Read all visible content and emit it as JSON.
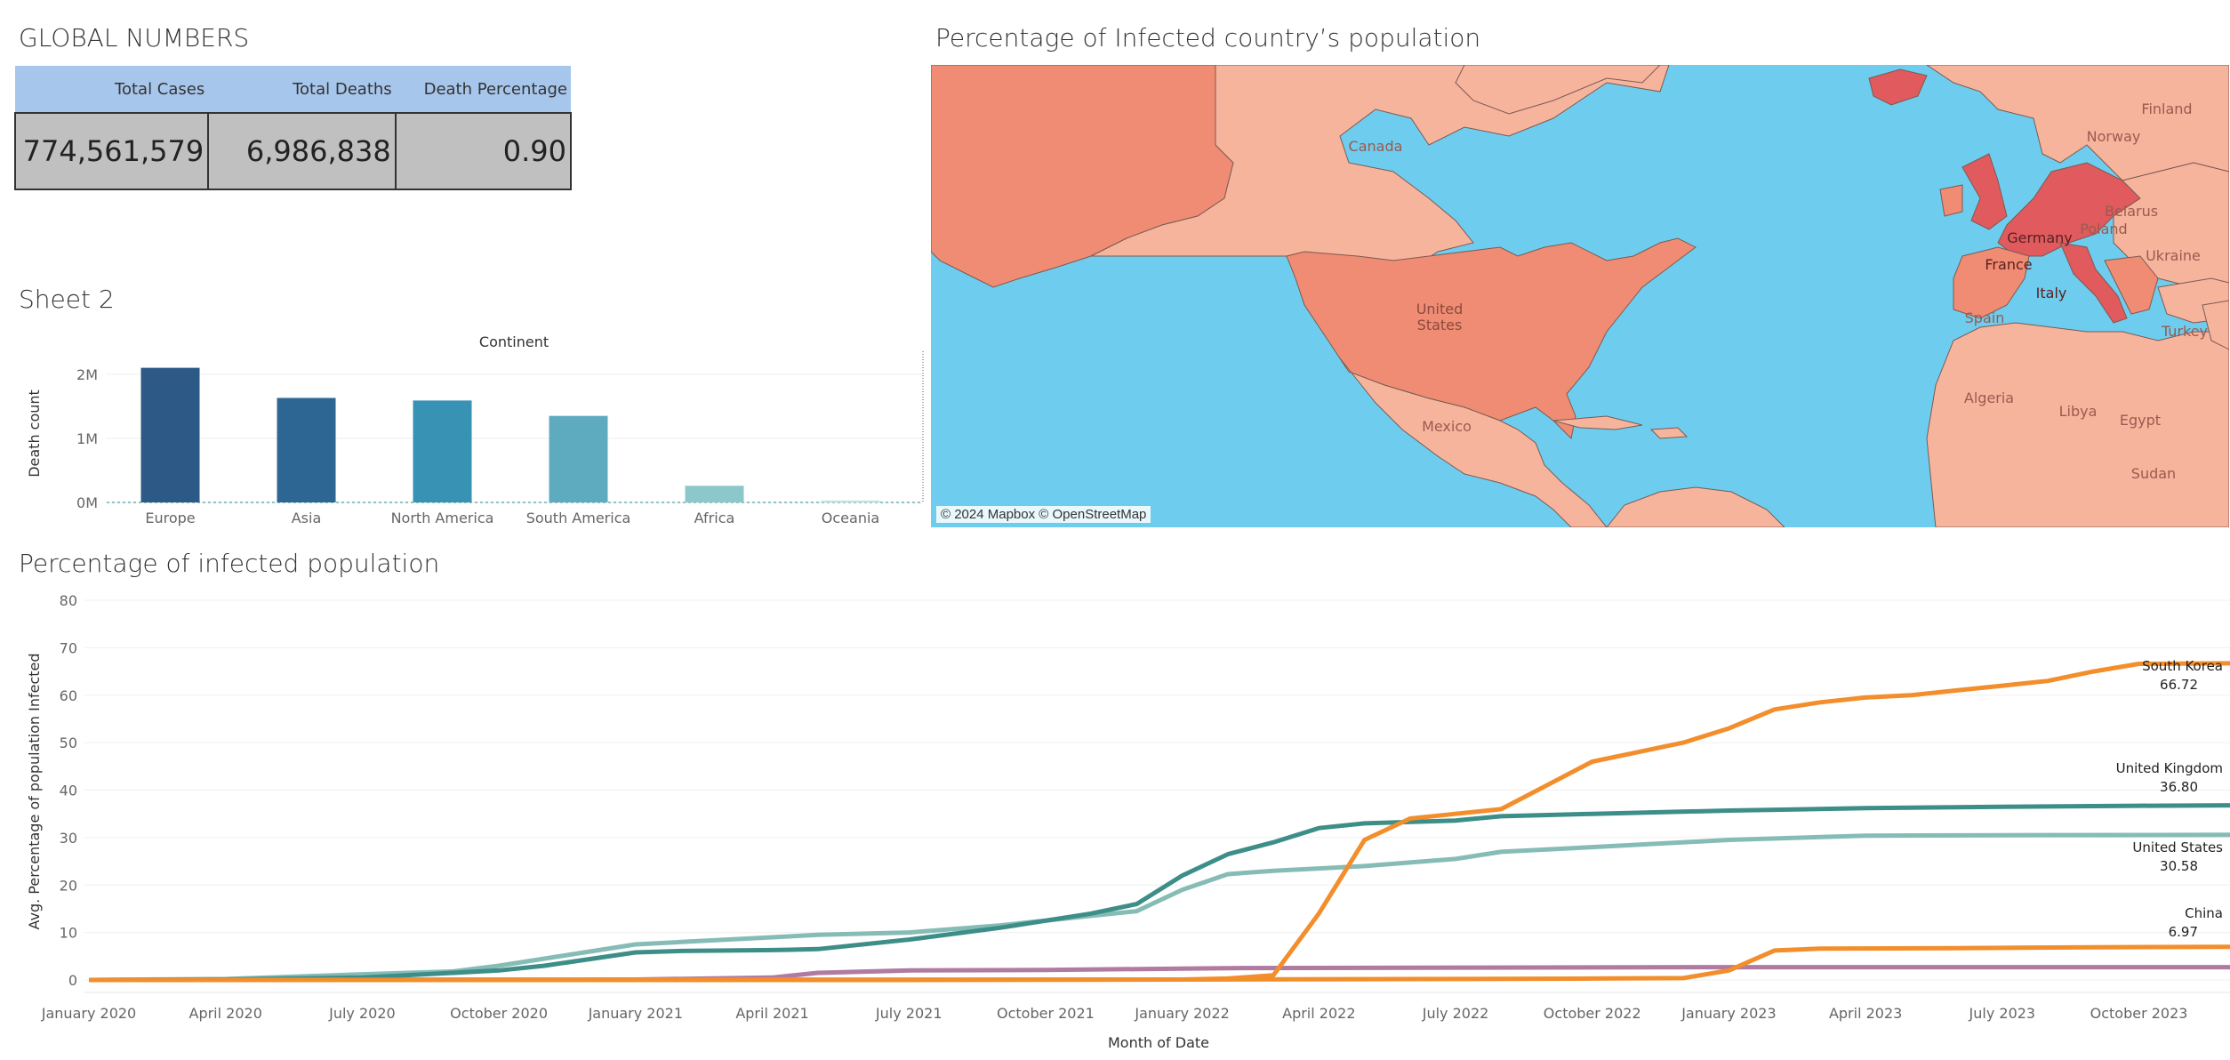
{
  "global": {
    "title": "GLOBAL NUMBERS",
    "headers": [
      "Total Cases",
      "Total Deaths",
      "Death Percentage"
    ],
    "values": [
      "774,561,579",
      "6,986,838",
      "0.90"
    ]
  },
  "sheet2": {
    "title": "Sheet 2"
  },
  "map": {
    "title": "Percentage of Infected country’s population",
    "attribution": "© 2024 Mapbox © OpenStreetMap",
    "labels": [
      "Canada",
      "United States",
      "Mexico",
      "France",
      "Germany",
      "Poland",
      "Belarus",
      "Ukraine",
      "Spain",
      "Italy",
      "Turkey",
      "Norway",
      "Finland",
      "Algeria",
      "Libya",
      "Egypt",
      "Sudan"
    ],
    "colors": {
      "water": "#6ecdee",
      "low": "#f7b49d",
      "mid": "#f08c73",
      "high": "#e05a5e"
    }
  },
  "line": {
    "title": "Percentage of infected population"
  },
  "chart_data": [
    {
      "type": "bar",
      "title": "Continent",
      "xlabel": "",
      "ylabel": "Death count",
      "categories": [
        "Europe",
        "Asia",
        "North America",
        "South America",
        "Africa",
        "Oceania"
      ],
      "values": [
        2100000,
        1630000,
        1590000,
        1350000,
        260000,
        30000
      ],
      "colors": [
        "#2c5985",
        "#2e6693",
        "#3892b4",
        "#5eabc0",
        "#8cc8cb",
        "#bde4df"
      ],
      "ylim": [
        0,
        2150000
      ],
      "yticks": [
        0,
        1000000,
        2000000
      ],
      "ytick_labels": [
        "0M",
        "1M",
        "2M"
      ],
      "grid": true
    },
    {
      "type": "line",
      "title": "",
      "xlabel": "Month of Date",
      "ylabel": "Avg. Percentage of population Infected",
      "x_tick_labels": [
        "January 2020",
        "April 2020",
        "July 2020",
        "October 2020",
        "January 2021",
        "April 2021",
        "July 2021",
        "October 2021",
        "January 2022",
        "April 2022",
        "July 2022",
        "October 2022",
        "January 2023",
        "April 2023",
        "July 2023",
        "October 2023"
      ],
      "ylim": [
        0,
        80
      ],
      "yticks": [
        0,
        10,
        20,
        30,
        40,
        50,
        60,
        70,
        80
      ],
      "grid": true,
      "series": [
        {
          "name": "South Korea",
          "end_label": "66.72",
          "color": "#f28e2b",
          "points": [
            [
              0,
              0
            ],
            [
              24,
              0.1
            ],
            [
              25,
              0.3
            ],
            [
              26,
              1.0
            ],
            [
              27,
              14
            ],
            [
              28,
              29.5
            ],
            [
              29,
              34
            ],
            [
              30,
              35
            ],
            [
              31,
              36
            ],
            [
              32,
              41
            ],
            [
              33,
              46
            ],
            [
              34,
              48
            ],
            [
              35,
              50
            ],
            [
              36,
              53
            ],
            [
              37,
              57
            ],
            [
              38,
              58.5
            ],
            [
              39,
              59.5
            ],
            [
              40,
              60
            ],
            [
              41,
              61
            ],
            [
              42,
              62
            ],
            [
              43,
              63
            ],
            [
              44,
              65
            ],
            [
              45,
              66.6
            ],
            [
              47,
              66.72
            ]
          ]
        },
        {
          "name": "United Kingdom",
          "end_label": "36.80",
          "color": "#3d8e88",
          "points": [
            [
              0,
              0
            ],
            [
              3,
              0.1
            ],
            [
              6,
              0.5
            ],
            [
              9,
              2
            ],
            [
              10,
              3
            ],
            [
              12,
              5.8
            ],
            [
              13,
              6.1
            ],
            [
              15,
              6.3
            ],
            [
              16,
              6.5
            ],
            [
              18,
              8.5
            ],
            [
              20,
              11
            ],
            [
              22,
              14
            ],
            [
              23,
              16
            ],
            [
              24,
              22
            ],
            [
              25,
              26.5
            ],
            [
              26,
              29
            ],
            [
              27,
              32
            ],
            [
              28,
              33
            ],
            [
              30,
              33.6
            ],
            [
              31,
              34.5
            ],
            [
              33,
              35
            ],
            [
              36,
              35.7
            ],
            [
              39,
              36.2
            ],
            [
              42,
              36.5
            ],
            [
              45,
              36.7
            ],
            [
              47,
              36.8
            ]
          ]
        },
        {
          "name": "United States",
          "end_label": "30.58",
          "color": "#86bcb6",
          "points": [
            [
              0,
              0
            ],
            [
              3,
              0.2
            ],
            [
              6,
              1.2
            ],
            [
              8,
              1.8
            ],
            [
              9,
              3
            ],
            [
              10,
              4.5
            ],
            [
              12,
              7.5
            ],
            [
              13,
              8
            ],
            [
              15,
              9
            ],
            [
              16,
              9.5
            ],
            [
              18,
              10
            ],
            [
              20,
              11.5
            ],
            [
              22,
              13.5
            ],
            [
              23,
              14.5
            ],
            [
              24,
              19
            ],
            [
              25,
              22.3
            ],
            [
              26,
              23
            ],
            [
              27,
              23.5
            ],
            [
              28,
              24
            ],
            [
              30,
              25.5
            ],
            [
              31,
              27
            ],
            [
              33,
              28
            ],
            [
              36,
              29.5
            ],
            [
              39,
              30.4
            ],
            [
              42,
              30.5
            ],
            [
              47,
              30.58
            ]
          ]
        },
        {
          "name": "China",
          "end_label": "6.97",
          "color": "#f28e2b",
          "points": [
            [
              0,
              0
            ],
            [
              18,
              0
            ],
            [
              24,
              0.1
            ],
            [
              30,
              0.2
            ],
            [
              33,
              0.3
            ],
            [
              35,
              0.4
            ],
            [
              36,
              2
            ],
            [
              37,
              6.2
            ],
            [
              38,
              6.6
            ],
            [
              41,
              6.7
            ],
            [
              44,
              6.9
            ],
            [
              47,
              6.97
            ]
          ]
        },
        {
          "name": "",
          "end_label": "",
          "color": "#b07aa1",
          "points": [
            [
              0,
              0
            ],
            [
              12,
              0.1
            ],
            [
              15,
              0.5
            ],
            [
              16,
              1.5
            ],
            [
              18,
              2
            ],
            [
              21,
              2.1
            ],
            [
              24,
              2.4
            ],
            [
              25,
              2.5
            ],
            [
              30,
              2.6
            ],
            [
              36,
              2.7
            ],
            [
              47,
              2.7
            ]
          ]
        }
      ]
    }
  ]
}
